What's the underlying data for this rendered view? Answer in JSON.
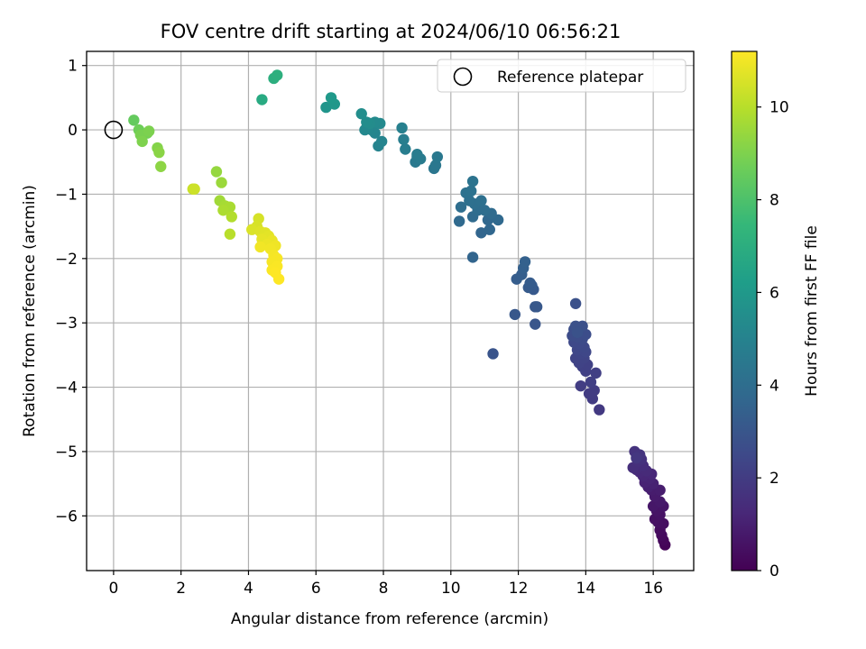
{
  "chart_data": {
    "type": "scatter",
    "title": "FOV centre drift starting at 2024/06/10 06:56:21",
    "xlabel": "Angular distance from reference (arcmin)",
    "ylabel": "Rotation from reference (arcmin)",
    "xlim": [
      -0.8,
      17.2
    ],
    "ylim": [
      -6.85,
      1.22
    ],
    "xticks": [
      0,
      2,
      4,
      6,
      8,
      10,
      12,
      14,
      16
    ],
    "yticks": [
      1,
      0,
      -1,
      -2,
      -3,
      -4,
      -5,
      -6
    ],
    "grid": true,
    "legend": {
      "position": "top-right",
      "label": "Reference platepar",
      "marker": "open-circle"
    },
    "reference": {
      "x": 0,
      "y": 0
    },
    "colorbar": {
      "label": "Hours from first FF file",
      "range": [
        0,
        11.2
      ],
      "ticks": [
        0,
        2,
        4,
        6,
        8,
        10
      ],
      "colormap": "viridis",
      "colors": [
        "#440154",
        "#482878",
        "#3e4989",
        "#31688e",
        "#26828e",
        "#1f9e89",
        "#35b779",
        "#6ece58",
        "#b5de2b",
        "#fde725"
      ]
    },
    "points": [
      {
        "x": 16.35,
        "y": -6.45,
        "c": 0.1
      },
      {
        "x": 16.3,
        "y": -6.38,
        "c": 0.2
      },
      {
        "x": 16.25,
        "y": -6.3,
        "c": 0.3
      },
      {
        "x": 16.2,
        "y": -6.22,
        "c": 0.35
      },
      {
        "x": 16.3,
        "y": -6.12,
        "c": 0.4
      },
      {
        "x": 16.15,
        "y": -6.1,
        "c": 0.45
      },
      {
        "x": 16.05,
        "y": -6.05,
        "c": 0.5
      },
      {
        "x": 16.2,
        "y": -5.98,
        "c": 0.55
      },
      {
        "x": 16.1,
        "y": -5.92,
        "c": 0.6
      },
      {
        "x": 16.3,
        "y": -5.85,
        "c": 0.65
      },
      {
        "x": 16.0,
        "y": -5.85,
        "c": 0.7
      },
      {
        "x": 16.2,
        "y": -5.78,
        "c": 0.75
      },
      {
        "x": 16.05,
        "y": -5.7,
        "c": 0.8
      },
      {
        "x": 15.95,
        "y": -5.6,
        "c": 0.85
      },
      {
        "x": 16.2,
        "y": -5.6,
        "c": 0.9
      },
      {
        "x": 15.85,
        "y": -5.55,
        "c": 1.0
      },
      {
        "x": 16.0,
        "y": -5.5,
        "c": 1.05
      },
      {
        "x": 15.75,
        "y": -5.48,
        "c": 1.1
      },
      {
        "x": 15.9,
        "y": -5.42,
        "c": 1.15
      },
      {
        "x": 15.7,
        "y": -5.38,
        "c": 1.2
      },
      {
        "x": 15.95,
        "y": -5.35,
        "c": 1.25
      },
      {
        "x": 15.6,
        "y": -5.32,
        "c": 1.3
      },
      {
        "x": 15.8,
        "y": -5.3,
        "c": 1.35
      },
      {
        "x": 15.5,
        "y": -5.28,
        "c": 1.4
      },
      {
        "x": 15.7,
        "y": -5.22,
        "c": 1.45
      },
      {
        "x": 15.4,
        "y": -5.25,
        "c": 1.5
      },
      {
        "x": 15.55,
        "y": -5.15,
        "c": 1.55
      },
      {
        "x": 15.65,
        "y": -5.12,
        "c": 1.6
      },
      {
        "x": 15.45,
        "y": -5.0,
        "c": 1.65
      },
      {
        "x": 15.6,
        "y": -5.05,
        "c": 1.7
      },
      {
        "x": 15.5,
        "y": -5.1,
        "c": 1.8
      },
      {
        "x": 14.4,
        "y": -4.35,
        "c": 1.9
      },
      {
        "x": 14.2,
        "y": -4.18,
        "c": 1.95
      },
      {
        "x": 14.25,
        "y": -4.05,
        "c": 2.0
      },
      {
        "x": 14.1,
        "y": -4.1,
        "c": 2.0
      },
      {
        "x": 13.85,
        "y": -3.98,
        "c": 2.05
      },
      {
        "x": 14.15,
        "y": -3.92,
        "c": 2.1
      },
      {
        "x": 14.3,
        "y": -3.78,
        "c": 2.1
      },
      {
        "x": 14.0,
        "y": -3.75,
        "c": 2.15
      },
      {
        "x": 13.9,
        "y": -3.68,
        "c": 2.2
      },
      {
        "x": 14.05,
        "y": -3.65,
        "c": 2.2
      },
      {
        "x": 13.8,
        "y": -3.62,
        "c": 2.25
      },
      {
        "x": 13.95,
        "y": -3.55,
        "c": 2.3
      },
      {
        "x": 13.7,
        "y": -3.55,
        "c": 2.3
      },
      {
        "x": 13.85,
        "y": -3.48,
        "c": 2.35
      },
      {
        "x": 14.0,
        "y": -3.45,
        "c": 2.4
      },
      {
        "x": 13.75,
        "y": -3.42,
        "c": 2.4
      },
      {
        "x": 13.95,
        "y": -3.38,
        "c": 2.45
      },
      {
        "x": 13.8,
        "y": -3.32,
        "c": 2.5
      },
      {
        "x": 13.65,
        "y": -3.3,
        "c": 2.5
      },
      {
        "x": 13.9,
        "y": -3.25,
        "c": 2.55
      },
      {
        "x": 13.75,
        "y": -3.22,
        "c": 2.6
      },
      {
        "x": 13.6,
        "y": -3.2,
        "c": 2.6
      },
      {
        "x": 14.0,
        "y": -3.18,
        "c": 2.65
      },
      {
        "x": 13.8,
        "y": -3.1,
        "c": 2.7
      },
      {
        "x": 13.65,
        "y": -3.1,
        "c": 2.7
      },
      {
        "x": 13.9,
        "y": -3.05,
        "c": 2.75
      },
      {
        "x": 13.7,
        "y": -3.05,
        "c": 2.8
      },
      {
        "x": 13.7,
        "y": -2.7,
        "c": 2.8
      },
      {
        "x": 13.75,
        "y": -3.15,
        "c": 2.85
      },
      {
        "x": 11.25,
        "y": -3.48,
        "c": 2.95
      },
      {
        "x": 12.5,
        "y": -3.02,
        "c": 3.0
      },
      {
        "x": 11.9,
        "y": -2.87,
        "c": 3.05
      },
      {
        "x": 12.5,
        "y": -2.75,
        "c": 3.1
      },
      {
        "x": 12.55,
        "y": -2.75,
        "c": 3.1
      },
      {
        "x": 12.45,
        "y": -2.48,
        "c": 3.15
      },
      {
        "x": 12.4,
        "y": -2.42,
        "c": 3.2
      },
      {
        "x": 12.3,
        "y": -2.45,
        "c": 3.2
      },
      {
        "x": 12.35,
        "y": -2.38,
        "c": 3.25
      },
      {
        "x": 11.95,
        "y": -2.32,
        "c": 3.3
      },
      {
        "x": 12.1,
        "y": -2.25,
        "c": 3.35
      },
      {
        "x": 12.15,
        "y": -2.15,
        "c": 3.4
      },
      {
        "x": 12.2,
        "y": -2.05,
        "c": 3.45
      },
      {
        "x": 10.65,
        "y": -1.98,
        "c": 3.6
      },
      {
        "x": 10.9,
        "y": -1.6,
        "c": 3.65
      },
      {
        "x": 11.15,
        "y": -1.55,
        "c": 3.7
      },
      {
        "x": 11.1,
        "y": -1.4,
        "c": 3.75
      },
      {
        "x": 11.4,
        "y": -1.4,
        "c": 3.8
      },
      {
        "x": 10.25,
        "y": -1.42,
        "c": 3.85
      },
      {
        "x": 11.2,
        "y": -1.3,
        "c": 3.9
      },
      {
        "x": 10.65,
        "y": -1.35,
        "c": 3.9
      },
      {
        "x": 10.8,
        "y": -1.25,
        "c": 3.95
      },
      {
        "x": 11.0,
        "y": -1.25,
        "c": 4.0
      },
      {
        "x": 10.3,
        "y": -1.2,
        "c": 4.0
      },
      {
        "x": 10.7,
        "y": -1.15,
        "c": 4.05
      },
      {
        "x": 10.55,
        "y": -1.1,
        "c": 4.1
      },
      {
        "x": 10.9,
        "y": -1.1,
        "c": 4.1
      },
      {
        "x": 10.45,
        "y": -0.98,
        "c": 4.15
      },
      {
        "x": 10.6,
        "y": -0.95,
        "c": 4.2
      },
      {
        "x": 10.65,
        "y": -0.8,
        "c": 4.25
      },
      {
        "x": 9.5,
        "y": -0.6,
        "c": 4.4
      },
      {
        "x": 9.55,
        "y": -0.55,
        "c": 4.45
      },
      {
        "x": 9.6,
        "y": -0.42,
        "c": 4.5
      },
      {
        "x": 8.95,
        "y": -0.5,
        "c": 4.55
      },
      {
        "x": 9.0,
        "y": -0.42,
        "c": 4.6
      },
      {
        "x": 9.1,
        "y": -0.45,
        "c": 4.65
      },
      {
        "x": 9.0,
        "y": -0.38,
        "c": 4.7
      },
      {
        "x": 8.65,
        "y": -0.3,
        "c": 4.75
      },
      {
        "x": 8.6,
        "y": -0.15,
        "c": 4.8
      },
      {
        "x": 8.55,
        "y": 0.03,
        "c": 4.9
      },
      {
        "x": 7.85,
        "y": -0.25,
        "c": 5.0
      },
      {
        "x": 7.95,
        "y": -0.18,
        "c": 5.05
      },
      {
        "x": 7.75,
        "y": -0.05,
        "c": 5.1
      },
      {
        "x": 7.65,
        "y": 0.0,
        "c": 5.15
      },
      {
        "x": 7.55,
        "y": 0.03,
        "c": 5.2
      },
      {
        "x": 7.45,
        "y": 0.0,
        "c": 5.25
      },
      {
        "x": 7.9,
        "y": 0.1,
        "c": 5.3
      },
      {
        "x": 7.75,
        "y": 0.12,
        "c": 5.35
      },
      {
        "x": 7.6,
        "y": 0.1,
        "c": 5.4
      },
      {
        "x": 7.5,
        "y": 0.12,
        "c": 5.45
      },
      {
        "x": 7.35,
        "y": 0.25,
        "c": 5.5
      },
      {
        "x": 6.3,
        "y": 0.35,
        "c": 5.8
      },
      {
        "x": 6.55,
        "y": 0.4,
        "c": 5.9
      },
      {
        "x": 6.45,
        "y": 0.5,
        "c": 6.0
      },
      {
        "x": 4.4,
        "y": 0.47,
        "c": 6.8
      },
      {
        "x": 4.75,
        "y": 0.8,
        "c": 7.0
      },
      {
        "x": 4.85,
        "y": 0.85,
        "c": 7.05
      },
      {
        "x": 0.6,
        "y": 0.15,
        "c": 8.5
      },
      {
        "x": 0.75,
        "y": 0.0,
        "c": 8.7
      },
      {
        "x": 1.0,
        "y": -0.05,
        "c": 8.8
      },
      {
        "x": 0.8,
        "y": -0.08,
        "c": 8.9
      },
      {
        "x": 1.05,
        "y": -0.02,
        "c": 8.95
      },
      {
        "x": 0.85,
        "y": -0.18,
        "c": 9.0
      },
      {
        "x": 1.3,
        "y": -0.28,
        "c": 9.1
      },
      {
        "x": 1.35,
        "y": -0.35,
        "c": 9.2
      },
      {
        "x": 1.4,
        "y": -0.57,
        "c": 9.25
      },
      {
        "x": 3.05,
        "y": -0.65,
        "c": 9.4
      },
      {
        "x": 3.2,
        "y": -0.82,
        "c": 9.5
      },
      {
        "x": 3.15,
        "y": -1.1,
        "c": 9.6
      },
      {
        "x": 3.3,
        "y": -1.18,
        "c": 9.7
      },
      {
        "x": 3.45,
        "y": -1.2,
        "c": 9.75
      },
      {
        "x": 3.25,
        "y": -1.25,
        "c": 9.8
      },
      {
        "x": 3.5,
        "y": -1.35,
        "c": 9.9
      },
      {
        "x": 3.45,
        "y": -1.62,
        "c": 10.0
      },
      {
        "x": 2.35,
        "y": -0.92,
        "c": 10.3
      },
      {
        "x": 2.4,
        "y": -0.92,
        "c": 10.35
      },
      {
        "x": 4.3,
        "y": -1.38,
        "c": 10.5
      },
      {
        "x": 4.25,
        "y": -1.5,
        "c": 10.55
      },
      {
        "x": 4.1,
        "y": -1.55,
        "c": 10.6
      },
      {
        "x": 4.35,
        "y": -1.58,
        "c": 10.65
      },
      {
        "x": 4.5,
        "y": -1.6,
        "c": 10.7
      },
      {
        "x": 4.6,
        "y": -1.65,
        "c": 10.75
      },
      {
        "x": 4.4,
        "y": -1.7,
        "c": 10.8
      },
      {
        "x": 4.7,
        "y": -1.72,
        "c": 10.85
      },
      {
        "x": 4.55,
        "y": -1.78,
        "c": 10.9
      },
      {
        "x": 4.8,
        "y": -1.8,
        "c": 10.95
      },
      {
        "x": 4.35,
        "y": -1.82,
        "c": 11.0
      },
      {
        "x": 4.65,
        "y": -1.85,
        "c": 11.0
      },
      {
        "x": 4.75,
        "y": -1.95,
        "c": 11.05
      },
      {
        "x": 4.85,
        "y": -2.0,
        "c": 11.1
      },
      {
        "x": 4.7,
        "y": -2.05,
        "c": 11.1
      },
      {
        "x": 4.85,
        "y": -2.12,
        "c": 11.15
      },
      {
        "x": 4.7,
        "y": -2.18,
        "c": 11.15
      },
      {
        "x": 4.8,
        "y": -2.22,
        "c": 11.2
      },
      {
        "x": 4.9,
        "y": -2.32,
        "c": 11.2
      }
    ]
  }
}
